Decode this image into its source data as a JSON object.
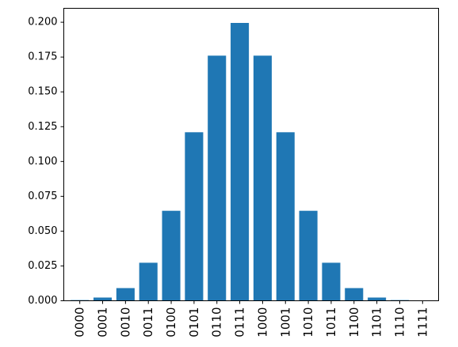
{
  "chart_data": {
    "type": "bar",
    "title": "",
    "xlabel": "",
    "ylabel": "",
    "categories": [
      "0000",
      "0001",
      "0010",
      "0011",
      "0100",
      "0101",
      "0110",
      "0111",
      "1000",
      "1001",
      "1010",
      "1011",
      "1100",
      "1101",
      "1110",
      "1111"
    ],
    "values": [
      0.0005,
      0.0023,
      0.0091,
      0.0273,
      0.0646,
      0.121,
      0.176,
      0.1995,
      0.176,
      0.121,
      0.0646,
      0.0273,
      0.0091,
      0.0023,
      0.0005,
      0.0001
    ],
    "ylim": [
      0,
      0.21
    ],
    "yticks": [
      0.0,
      0.025,
      0.05,
      0.075,
      0.1,
      0.125,
      0.15,
      0.175,
      0.2
    ],
    "ytick_labels": [
      "0.000",
      "0.025",
      "0.050",
      "0.075",
      "0.100",
      "0.125",
      "0.150",
      "0.175",
      "0.200"
    ],
    "bar_color": "#1f77b4",
    "grid": false,
    "legend": "none"
  }
}
